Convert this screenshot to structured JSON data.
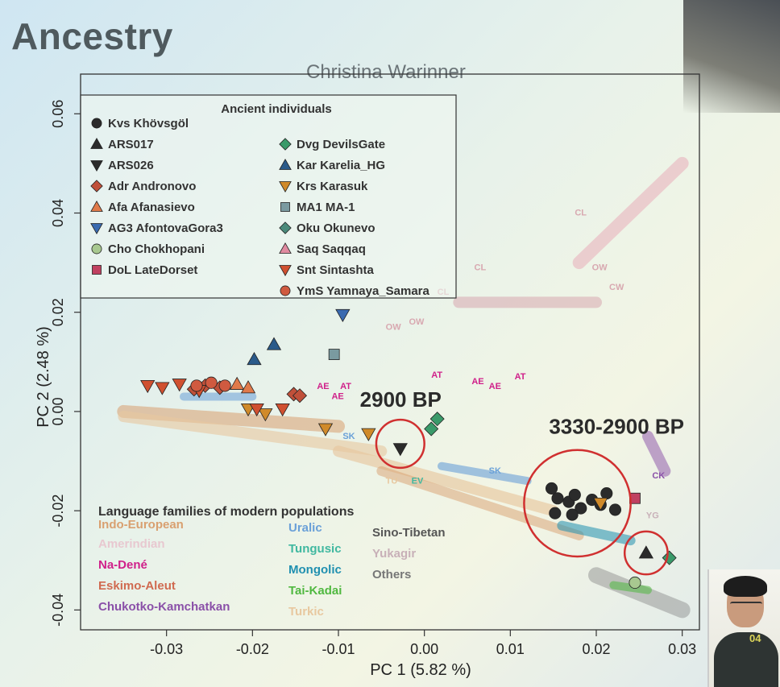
{
  "slide": {
    "title": "Ancestry",
    "author": "Christina Warinner"
  },
  "webcam": {
    "overlay_text": "04"
  },
  "chart_data": {
    "type": "scatter",
    "title": "",
    "xlabel": "PC 1 (5.82 %)",
    "ylabel": "PC 2 (2.48 %)",
    "xlim": [
      -0.04,
      0.032
    ],
    "ylim": [
      -0.044,
      0.068
    ],
    "x_ticks": [
      -0.03,
      -0.02,
      -0.01,
      0.0,
      0.01,
      0.02,
      0.03
    ],
    "x_tick_labels": [
      "-0.03",
      "-0.02",
      "-0.01",
      "0.00",
      "0.01",
      "0.02",
      "0.03"
    ],
    "y_ticks": [
      -0.04,
      -0.02,
      0.0,
      0.02,
      0.04,
      0.06
    ],
    "y_tick_labels": [
      "-0.04",
      "-0.02",
      "0.00",
      "0.02",
      "0.04",
      "0.06"
    ],
    "legend_title": "Ancient individuals",
    "legend_placement": "top-left",
    "legend_col1": [
      {
        "code": "Kvs",
        "name": "Khövsgöl",
        "shape": "circle",
        "color": "#2b2b2b"
      },
      {
        "code": "ARS017",
        "name": "",
        "shape": "triangle-up",
        "color": "#2b2b2b"
      },
      {
        "code": "ARS026",
        "name": "",
        "shape": "triangle-down",
        "color": "#2b2b2b"
      },
      {
        "code": "Adr",
        "name": "Andronovo",
        "shape": "diamond",
        "color": "#c0503a"
      },
      {
        "code": "Afa",
        "name": "Afanasievo",
        "shape": "triangle-up",
        "color": "#e07a4a"
      },
      {
        "code": "AG3",
        "name": "AfontovaGora3",
        "shape": "triangle-down",
        "color": "#3a6ab0"
      },
      {
        "code": "Cho",
        "name": "Chokhopani",
        "shape": "circle",
        "color": "#a8c890"
      },
      {
        "code": "DoL",
        "name": "LateDorset",
        "shape": "square",
        "color": "#c04060"
      }
    ],
    "legend_col2": [
      {
        "code": "Dvg",
        "name": "DevilsGate",
        "shape": "diamond",
        "color": "#3a9a6a"
      },
      {
        "code": "Kar",
        "name": "Karelia_HG",
        "shape": "triangle-up",
        "color": "#2a5a8a"
      },
      {
        "code": "Krs",
        "name": "Karasuk",
        "shape": "triangle-down",
        "color": "#d08a2a"
      },
      {
        "code": "MA1",
        "name": "MA-1",
        "shape": "square",
        "color": "#7a9aa0"
      },
      {
        "code": "Oku",
        "name": "Okunevo",
        "shape": "diamond",
        "color": "#4a8a7a"
      },
      {
        "code": "Saq",
        "name": "Saqqaq",
        "shape": "triangle-up",
        "color": "#e08aa0"
      },
      {
        "code": "Snt",
        "name": "Sintashta",
        "shape": "triangle-down",
        "color": "#d05030"
      },
      {
        "code": "YmS",
        "name": "Yamnaya_Samara",
        "shape": "circle",
        "color": "#d05a40"
      }
    ],
    "language_title": "Language families of modern populations",
    "language_families": [
      {
        "name": "Indo-European",
        "color": "#d9a070"
      },
      {
        "name": "Amerindian",
        "color": "#e8c8d0"
      },
      {
        "name": "Na-Dené",
        "color": "#d0208a"
      },
      {
        "name": "Eskimo-Aleut",
        "color": "#d06a50"
      },
      {
        "name": "Chukotko-Kamchatkan",
        "color": "#8a50a8"
      },
      {
        "name": "Uralic",
        "color": "#6aa0d8"
      },
      {
        "name": "Tungusic",
        "color": "#40b8a0"
      },
      {
        "name": "Mongolic",
        "color": "#2090b0"
      },
      {
        "name": "Tai-Kadai",
        "color": "#50b840"
      },
      {
        "name": "Turkic",
        "color": "#e8c8a0"
      },
      {
        "name": "Sino-Tibetan",
        "color": "#555555"
      },
      {
        "name": "Yukagir",
        "color": "#c8b0b8"
      },
      {
        "name": "Others",
        "color": "#777777"
      }
    ],
    "annotations": [
      {
        "text": "2900 BP",
        "x": -0.0075,
        "y": 0.001
      },
      {
        "text": "3330-2900 BP",
        "x": 0.0145,
        "y": -0.0045
      }
    ],
    "highlight_circles": [
      {
        "x": -0.0028,
        "y": -0.0065,
        "r": 0.0028,
        "color": "#d03030"
      },
      {
        "x": 0.0178,
        "y": -0.0185,
        "r": 0.0062,
        "color": "#d03030"
      },
      {
        "x": 0.0258,
        "y": -0.0285,
        "r": 0.0025,
        "color": "#d03030"
      }
    ],
    "ancient_points": [
      {
        "code": "Kvs",
        "x": 0.0148,
        "y": -0.0155
      },
      {
        "code": "Kvs",
        "x": 0.0155,
        "y": -0.0175
      },
      {
        "code": "Kvs",
        "x": 0.0168,
        "y": -0.0182
      },
      {
        "code": "Kvs",
        "x": 0.0175,
        "y": -0.0168
      },
      {
        "code": "Kvs",
        "x": 0.0182,
        "y": -0.0195
      },
      {
        "code": "Kvs",
        "x": 0.0195,
        "y": -0.0178
      },
      {
        "code": "Kvs",
        "x": 0.0205,
        "y": -0.0188
      },
      {
        "code": "Kvs",
        "x": 0.0212,
        "y": -0.0165
      },
      {
        "code": "Kvs",
        "x": 0.0222,
        "y": -0.0198
      },
      {
        "code": "Kvs",
        "x": 0.0152,
        "y": -0.0205
      },
      {
        "code": "Kvs",
        "x": 0.0172,
        "y": -0.0208
      },
      {
        "code": "ARS017",
        "x": 0.0258,
        "y": -0.0285
      },
      {
        "code": "ARS026",
        "x": -0.0028,
        "y": -0.0075
      },
      {
        "code": "Adr",
        "x": -0.0152,
        "y": 0.0035
      },
      {
        "code": "Adr",
        "x": -0.0145,
        "y": 0.0032
      },
      {
        "code": "Adr",
        "x": -0.0268,
        "y": 0.0045
      },
      {
        "code": "Adr",
        "x": -0.0255,
        "y": 0.0052
      },
      {
        "code": "Adr",
        "x": -0.0238,
        "y": 0.0048
      },
      {
        "code": "Afa",
        "x": -0.0218,
        "y": 0.0055
      },
      {
        "code": "Afa",
        "x": -0.0205,
        "y": 0.0048
      },
      {
        "code": "AG3",
        "x": -0.0095,
        "y": 0.0195
      },
      {
        "code": "Cho",
        "x": 0.0245,
        "y": -0.0345
      },
      {
        "code": "DoL",
        "x": 0.0245,
        "y": -0.0175
      },
      {
        "code": "Dvg",
        "x": 0.0008,
        "y": -0.0035
      },
      {
        "code": "Dvg",
        "x": 0.0015,
        "y": -0.0015
      },
      {
        "code": "Dvg",
        "x": 0.0285,
        "y": -0.0295
      },
      {
        "code": "Kar",
        "x": -0.0198,
        "y": 0.0105
      },
      {
        "code": "Kar",
        "x": -0.0175,
        "y": 0.0135
      },
      {
        "code": "Krs",
        "x": -0.0115,
        "y": -0.0035
      },
      {
        "code": "Krs",
        "x": -0.0065,
        "y": -0.0045
      },
      {
        "code": "Krs",
        "x": -0.0205,
        "y": 0.0005
      },
      {
        "code": "Krs",
        "x": -0.0185,
        "y": -0.0005
      },
      {
        "code": "Krs",
        "x": 0.0205,
        "y": -0.0185
      },
      {
        "code": "MA1",
        "x": -0.0105,
        "y": 0.0115
      },
      {
        "code": "Snt",
        "x": -0.0322,
        "y": 0.0052
      },
      {
        "code": "Snt",
        "x": -0.0305,
        "y": 0.0048
      },
      {
        "code": "Snt",
        "x": -0.0285,
        "y": 0.0055
      },
      {
        "code": "Snt",
        "x": -0.0262,
        "y": 0.0042
      },
      {
        "code": "Snt",
        "x": -0.0195,
        "y": 0.0005
      },
      {
        "code": "Snt",
        "x": -0.0165,
        "y": 0.0005
      },
      {
        "code": "YmS",
        "x": -0.0265,
        "y": 0.0052
      },
      {
        "code": "YmS",
        "x": -0.0248,
        "y": 0.0058
      },
      {
        "code": "YmS",
        "x": -0.0232,
        "y": 0.0052
      }
    ],
    "modern_labels": [
      {
        "text": "AE",
        "x": -0.0125,
        "y": 0.0045,
        "color": "#d0208a"
      },
      {
        "text": "AT",
        "x": -0.0098,
        "y": 0.0045,
        "color": "#d0208a"
      },
      {
        "text": "AE",
        "x": -0.0108,
        "y": 0.0025,
        "color": "#d0208a"
      },
      {
        "text": "AT",
        "x": 0.0008,
        "y": 0.0068,
        "color": "#d0208a"
      },
      {
        "text": "AE",
        "x": 0.0055,
        "y": 0.0055,
        "color": "#d0208a"
      },
      {
        "text": "AE",
        "x": 0.0075,
        "y": 0.0045,
        "color": "#d0208a"
      },
      {
        "text": "AT",
        "x": 0.0105,
        "y": 0.0065,
        "color": "#d0208a"
      },
      {
        "text": "OW",
        "x": -0.0045,
        "y": 0.0165,
        "color": "#d8a8b0"
      },
      {
        "text": "OW",
        "x": -0.0018,
        "y": 0.0175,
        "color": "#d8a8b0"
      },
      {
        "text": "CL",
        "x": 0.0175,
        "y": 0.0395,
        "color": "#d8a8b0"
      },
      {
        "text": "CL",
        "x": 0.0058,
        "y": 0.0285,
        "color": "#d8a8b0"
      },
      {
        "text": "CL",
        "x": 0.0015,
        "y": 0.0235,
        "color": "#d8a8b0"
      },
      {
        "text": "OW",
        "x": 0.0195,
        "y": 0.0285,
        "color": "#d8a8b0"
      },
      {
        "text": "CW",
        "x": 0.0215,
        "y": 0.0245,
        "color": "#d8a8b0"
      },
      {
        "text": "SK",
        "x": -0.0095,
        "y": -0.0055,
        "color": "#6aa0d8"
      },
      {
        "text": "SK",
        "x": 0.0075,
        "y": -0.0125,
        "color": "#6aa0d8"
      },
      {
        "text": "YG",
        "x": 0.0258,
        "y": -0.0215,
        "color": "#c8b0b8"
      },
      {
        "text": "CK",
        "x": 0.0265,
        "y": -0.0135,
        "color": "#8a50a8"
      },
      {
        "text": "EV",
        "x": -0.0015,
        "y": -0.0145,
        "color": "#40b8a0"
      },
      {
        "text": "TU",
        "x": -0.0045,
        "y": -0.0145,
        "color": "#e8c8a0"
      }
    ]
  }
}
